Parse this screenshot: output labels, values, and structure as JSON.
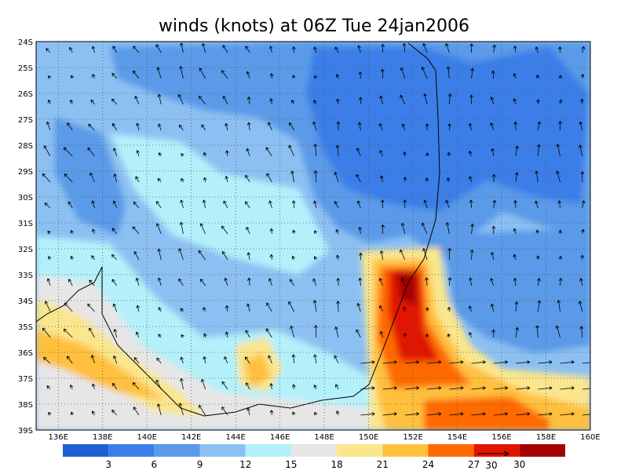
{
  "title": "winds (knots) at 06Z Tue 24jan2006",
  "lon_labels": [
    "136E",
    "138E",
    "140E",
    "142E",
    "144E",
    "146E",
    "148E",
    "150E",
    "152E",
    "154E",
    "156E",
    "158E",
    "160E"
  ],
  "lat_labels": [
    "24S",
    "25S",
    "26S",
    "27S",
    "28S",
    "29S",
    "30S",
    "31S",
    "32S",
    "33S",
    "34S",
    "35S",
    "36S",
    "37S",
    "38S",
    "39S"
  ],
  "colorbar": {
    "colors": [
      "#1f5fd6",
      "#3a7ee8",
      "#5a9ae8",
      "#8cc0f2",
      "#b4f0fa",
      "#e6e6e6",
      "#fae68c",
      "#ffc03c",
      "#ff6a00",
      "#e11400",
      "#a50000"
    ],
    "labels": [
      3,
      6,
      9,
      12,
      15,
      18,
      21,
      24,
      27,
      30
    ]
  },
  "reference_vector": "30"
}
